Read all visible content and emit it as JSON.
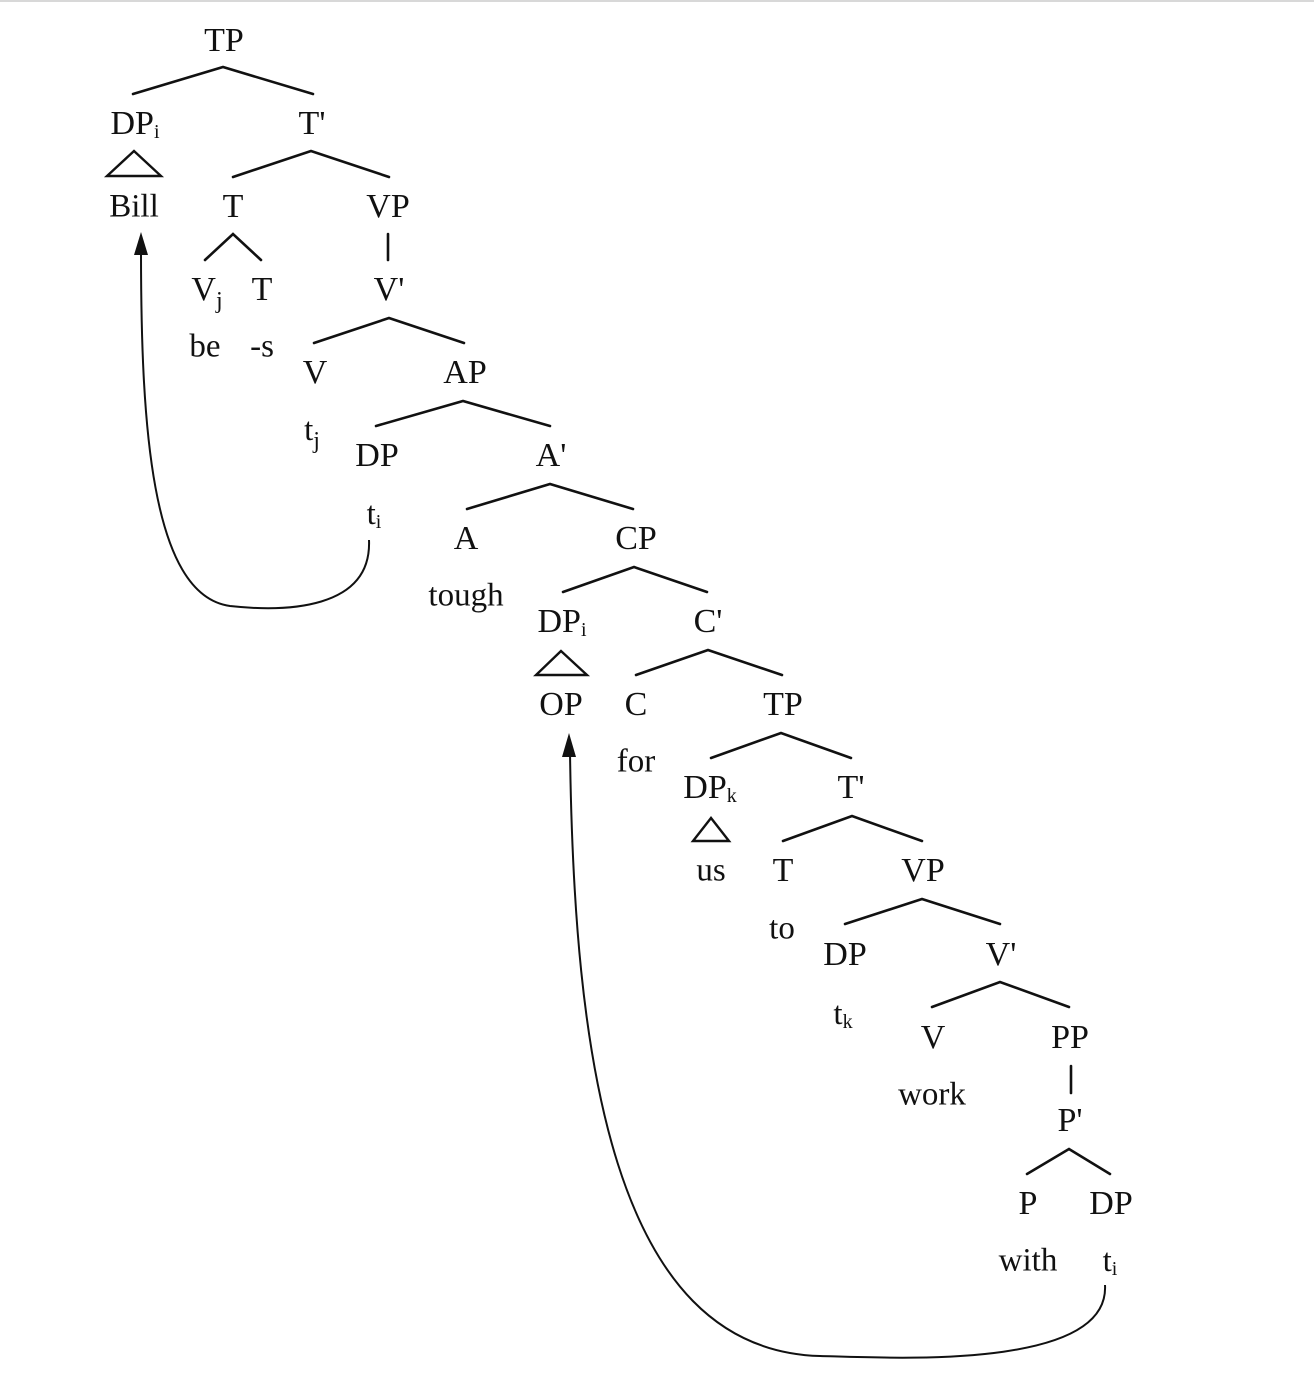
{
  "tree": {
    "nodes": {
      "tp_root": "TP",
      "dp_subject": "DP",
      "dp_subject_index": "i",
      "t_bar_1": "T'",
      "bill": "Bill",
      "t_1": "T",
      "vp_1": "VP",
      "v_j": "V",
      "v_j_index": "j",
      "t_inner": "T",
      "v_bar_1": "V'",
      "be": "be",
      "s_suffix": "-s",
      "v_1": "V",
      "ap": "AP",
      "trace_j": "t",
      "trace_j_index": "j",
      "dp_spec_ap": "DP",
      "a_bar": "A'",
      "trace_i_1": "t",
      "trace_i_1_index": "i",
      "a_head": "A",
      "cp": "CP",
      "tough": "tough",
      "dp_op": "DP",
      "dp_op_index": "i",
      "c_bar": "C'",
      "op": "OP",
      "c_head": "C",
      "tp_2": "TP",
      "for": "for",
      "dp_us": "DP",
      "dp_us_index": "k",
      "t_bar_2": "T'",
      "us": "us",
      "t_2": "T",
      "vp_2": "VP",
      "to": "to",
      "dp_spec_vp": "DP",
      "v_bar_2": "V'",
      "trace_k": "t",
      "trace_k_index": "k",
      "v_2": "V",
      "pp": "PP",
      "work": "work",
      "p_bar": "P'",
      "p_head": "P",
      "dp_obj": "DP",
      "with": "with",
      "trace_i_2": "t",
      "trace_i_2_index": "i"
    }
  },
  "movements": [
    {
      "from": "trace_i_1",
      "to": "bill"
    },
    {
      "from": "trace_i_2",
      "to": "op"
    }
  ]
}
